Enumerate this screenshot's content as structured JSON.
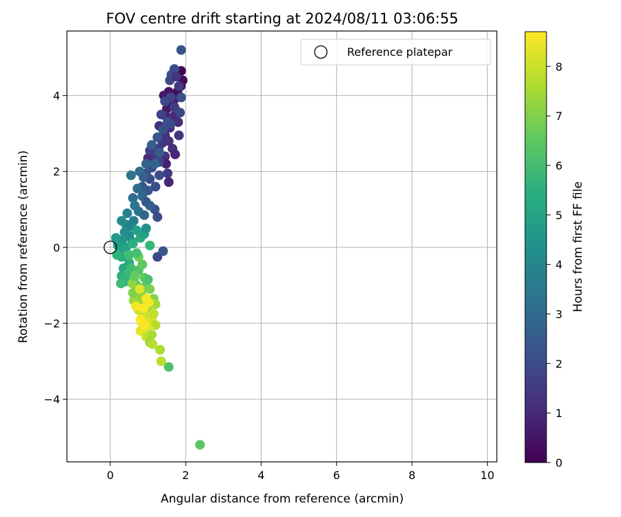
{
  "chart_data": {
    "type": "scatter",
    "title": "FOV centre drift starting at 2024/08/11 03:06:55",
    "xlabel": "Angular distance from reference (arcmin)",
    "ylabel": "Rotation from reference (arcmin)",
    "xlim": [
      -1.15,
      10.25
    ],
    "ylim": [
      -5.65,
      5.7
    ],
    "xticks": [
      0,
      2,
      4,
      6,
      8,
      10
    ],
    "yticks": [
      -4,
      -2,
      0,
      2,
      4
    ],
    "xtick_labels": [
      "0",
      "2",
      "4",
      "6",
      "8",
      "10"
    ],
    "ytick_labels": [
      "−4",
      "−2",
      "0",
      "2",
      "4"
    ],
    "grid": true,
    "legend": {
      "placement": "top-right",
      "entries": [
        {
          "label": "Reference platepar",
          "marker": "open-circle",
          "color": "#000000"
        }
      ]
    },
    "reference_point": {
      "x": 0,
      "y": 0
    },
    "colorbar": {
      "label": "Hours from first FF file",
      "colormap": "viridis",
      "range": [
        0,
        8.7
      ],
      "ticks": [
        0,
        1,
        2,
        3,
        4,
        5,
        6,
        7,
        8
      ],
      "tick_labels": [
        "0",
        "1",
        "2",
        "3",
        "4",
        "5",
        "6",
        "7",
        "8"
      ]
    },
    "series": [
      {
        "columns": [
          "x",
          "y",
          "hours"
        ],
        "points": [
          [
            1.88,
            4.65,
            0.1
          ],
          [
            1.92,
            4.4,
            0.2
          ],
          [
            1.87,
            4.25,
            0.3
          ],
          [
            1.78,
            4.1,
            0.35
          ],
          [
            1.55,
            4.1,
            0.4
          ],
          [
            1.42,
            4.0,
            0.5
          ],
          [
            1.7,
            3.9,
            0.6
          ],
          [
            1.6,
            3.75,
            0.7
          ],
          [
            1.5,
            3.65,
            0.6
          ],
          [
            1.75,
            3.6,
            0.8
          ],
          [
            1.48,
            3.45,
            0.9
          ],
          [
            1.68,
            3.45,
            1.0
          ],
          [
            1.8,
            3.3,
            1.1
          ],
          [
            1.58,
            3.15,
            1.1
          ],
          [
            1.3,
            3.2,
            1.2
          ],
          [
            1.82,
            2.95,
            1.3
          ],
          [
            1.45,
            2.95,
            1.2
          ],
          [
            1.38,
            2.75,
            1.4
          ],
          [
            1.55,
            2.8,
            1.3
          ],
          [
            1.65,
            2.6,
            1.1
          ],
          [
            1.72,
            2.45,
            0.9
          ],
          [
            1.28,
            2.6,
            1.5
          ],
          [
            1.45,
            2.4,
            1.2
          ],
          [
            1.48,
            2.2,
            0.8
          ],
          [
            1.15,
            2.4,
            1.6
          ],
          [
            1.0,
            2.35,
            1.0
          ],
          [
            1.05,
            2.55,
            1.7
          ],
          [
            1.3,
            2.25,
            1.8
          ],
          [
            1.52,
            1.95,
            1.5
          ],
          [
            1.55,
            1.72,
            0.9
          ],
          [
            1.3,
            1.9,
            2.0
          ],
          [
            1.1,
            2.1,
            2.1
          ],
          [
            0.95,
            1.95,
            2.2
          ],
          [
            1.05,
            1.8,
            2.0
          ],
          [
            1.2,
            1.6,
            2.1
          ],
          [
            1.0,
            1.5,
            2.4
          ],
          [
            0.85,
            1.6,
            2.3
          ],
          [
            1.18,
            1.0,
            2.2
          ],
          [
            1.25,
            0.8,
            2.0
          ],
          [
            1.4,
            -0.1,
            2.3
          ],
          [
            1.25,
            -0.25,
            1.9
          ],
          [
            1.7,
            4.7,
            2.0
          ],
          [
            1.88,
            5.2,
            2.2
          ],
          [
            1.62,
            4.55,
            2.1
          ],
          [
            1.58,
            4.4,
            1.9
          ],
          [
            1.75,
            4.5,
            1.3
          ],
          [
            1.82,
            4.25,
            1.5
          ],
          [
            1.45,
            3.85,
            2.0
          ],
          [
            1.6,
            3.95,
            1.8
          ],
          [
            1.35,
            3.5,
            1.7
          ],
          [
            1.7,
            3.7,
            1.6
          ],
          [
            1.88,
            3.95,
            2.2
          ],
          [
            1.85,
            3.55,
            1.9
          ],
          [
            1.52,
            3.3,
            2.3
          ],
          [
            1.4,
            3.1,
            2.2
          ],
          [
            1.6,
            3.25,
            1.9
          ],
          [
            1.25,
            2.9,
            2.4
          ],
          [
            1.1,
            2.7,
            2.6
          ],
          [
            1.3,
            2.5,
            2.5
          ],
          [
            1.18,
            2.2,
            2.8
          ],
          [
            0.95,
            2.2,
            2.7
          ],
          [
            0.78,
            2.0,
            3.0
          ],
          [
            0.88,
            1.85,
            2.6
          ],
          [
            0.72,
            1.55,
            3.1
          ],
          [
            0.85,
            1.35,
            2.9
          ],
          [
            0.95,
            1.2,
            2.4
          ],
          [
            1.05,
            1.1,
            2.6
          ],
          [
            0.6,
            1.3,
            3.2
          ],
          [
            0.65,
            1.1,
            3.5
          ],
          [
            0.75,
            0.95,
            3.3
          ],
          [
            0.9,
            0.85,
            2.8
          ],
          [
            0.55,
            1.9,
            3.4
          ],
          [
            0.62,
            0.7,
            3.6
          ],
          [
            0.45,
            0.9,
            3.8
          ],
          [
            0.42,
            0.6,
            4.0
          ],
          [
            0.55,
            0.55,
            3.9
          ],
          [
            0.3,
            0.7,
            4.2
          ],
          [
            0.38,
            0.4,
            4.3
          ],
          [
            0.5,
            0.3,
            4.1
          ],
          [
            0.58,
            0.15,
            4.5
          ],
          [
            0.32,
            0.2,
            4.6
          ],
          [
            0.2,
            0.05,
            4.8
          ],
          [
            0.25,
            -0.1,
            5.0
          ],
          [
            0.15,
            0.25,
            4.7
          ],
          [
            0.42,
            0.0,
            5.1
          ],
          [
            0.3,
            -0.25,
            5.3
          ],
          [
            0.18,
            -0.2,
            5.6
          ],
          [
            0.5,
            -0.4,
            5.4
          ],
          [
            0.35,
            -0.55,
            5.2
          ],
          [
            0.3,
            -0.75,
            5.5
          ],
          [
            0.45,
            -0.7,
            5.8
          ],
          [
            0.55,
            -0.55,
            6.0
          ],
          [
            0.4,
            -0.9,
            5.7
          ],
          [
            0.28,
            -0.95,
            5.9
          ],
          [
            0.62,
            -0.85,
            6.1
          ],
          [
            0.75,
            -0.6,
            6.3
          ],
          [
            0.85,
            -0.45,
            6.5
          ],
          [
            0.75,
            -0.25,
            6.8
          ],
          [
            0.7,
            -1.0,
            6.4
          ],
          [
            0.9,
            -0.8,
            6.6
          ],
          [
            0.95,
            -1.0,
            6.7
          ],
          [
            1.0,
            -0.85,
            6.2
          ],
          [
            0.82,
            -1.2,
            6.9
          ],
          [
            1.05,
            -1.1,
            7.0
          ],
          [
            0.72,
            -1.3,
            7.2
          ],
          [
            0.62,
            -1.4,
            7.4
          ],
          [
            0.85,
            -1.45,
            7.3
          ],
          [
            1.15,
            -1.35,
            7.1
          ],
          [
            1.2,
            -1.5,
            7.5
          ],
          [
            1.0,
            -1.6,
            7.6
          ],
          [
            0.85,
            -1.75,
            7.8
          ],
          [
            0.75,
            -1.65,
            8.0
          ],
          [
            0.95,
            -1.85,
            8.1
          ],
          [
            1.1,
            -1.9,
            8.2
          ],
          [
            1.15,
            -1.75,
            7.9
          ],
          [
            1.2,
            -2.05,
            7.7
          ],
          [
            1.0,
            -2.1,
            8.3
          ],
          [
            0.85,
            -2.0,
            8.5
          ],
          [
            0.8,
            -2.2,
            8.4
          ],
          [
            0.95,
            -2.35,
            8.0
          ],
          [
            1.1,
            -2.3,
            7.6
          ],
          [
            1.05,
            -2.5,
            7.4
          ],
          [
            1.12,
            -2.55,
            7.8
          ],
          [
            1.32,
            -2.7,
            7.6
          ],
          [
            1.35,
            -3.0,
            7.8
          ],
          [
            1.55,
            -3.15,
            6.3
          ],
          [
            2.38,
            -5.2,
            6.4
          ],
          [
            0.7,
            -0.15,
            6.1
          ],
          [
            0.6,
            0.1,
            5.5
          ],
          [
            0.8,
            0.25,
            5.3
          ],
          [
            0.7,
            0.45,
            4.9
          ],
          [
            0.9,
            0.35,
            5.0
          ],
          [
            0.95,
            0.5,
            4.4
          ],
          [
            1.05,
            0.05,
            5.8
          ],
          [
            0.5,
            -0.2,
            6.0
          ],
          [
            0.6,
            -1.2,
            7.0
          ],
          [
            0.68,
            -1.55,
            8.6
          ],
          [
            0.88,
            -1.6,
            8.7
          ],
          [
            0.95,
            -1.35,
            8.6
          ],
          [
            1.02,
            -1.45,
            8.6
          ],
          [
            0.8,
            -1.9,
            8.7
          ],
          [
            0.92,
            -2.05,
            8.6
          ],
          [
            0.78,
            -1.1,
            8.3
          ],
          [
            0.58,
            -0.95,
            7.2
          ],
          [
            0.65,
            -0.75,
            6.6
          ]
        ]
      }
    ]
  }
}
